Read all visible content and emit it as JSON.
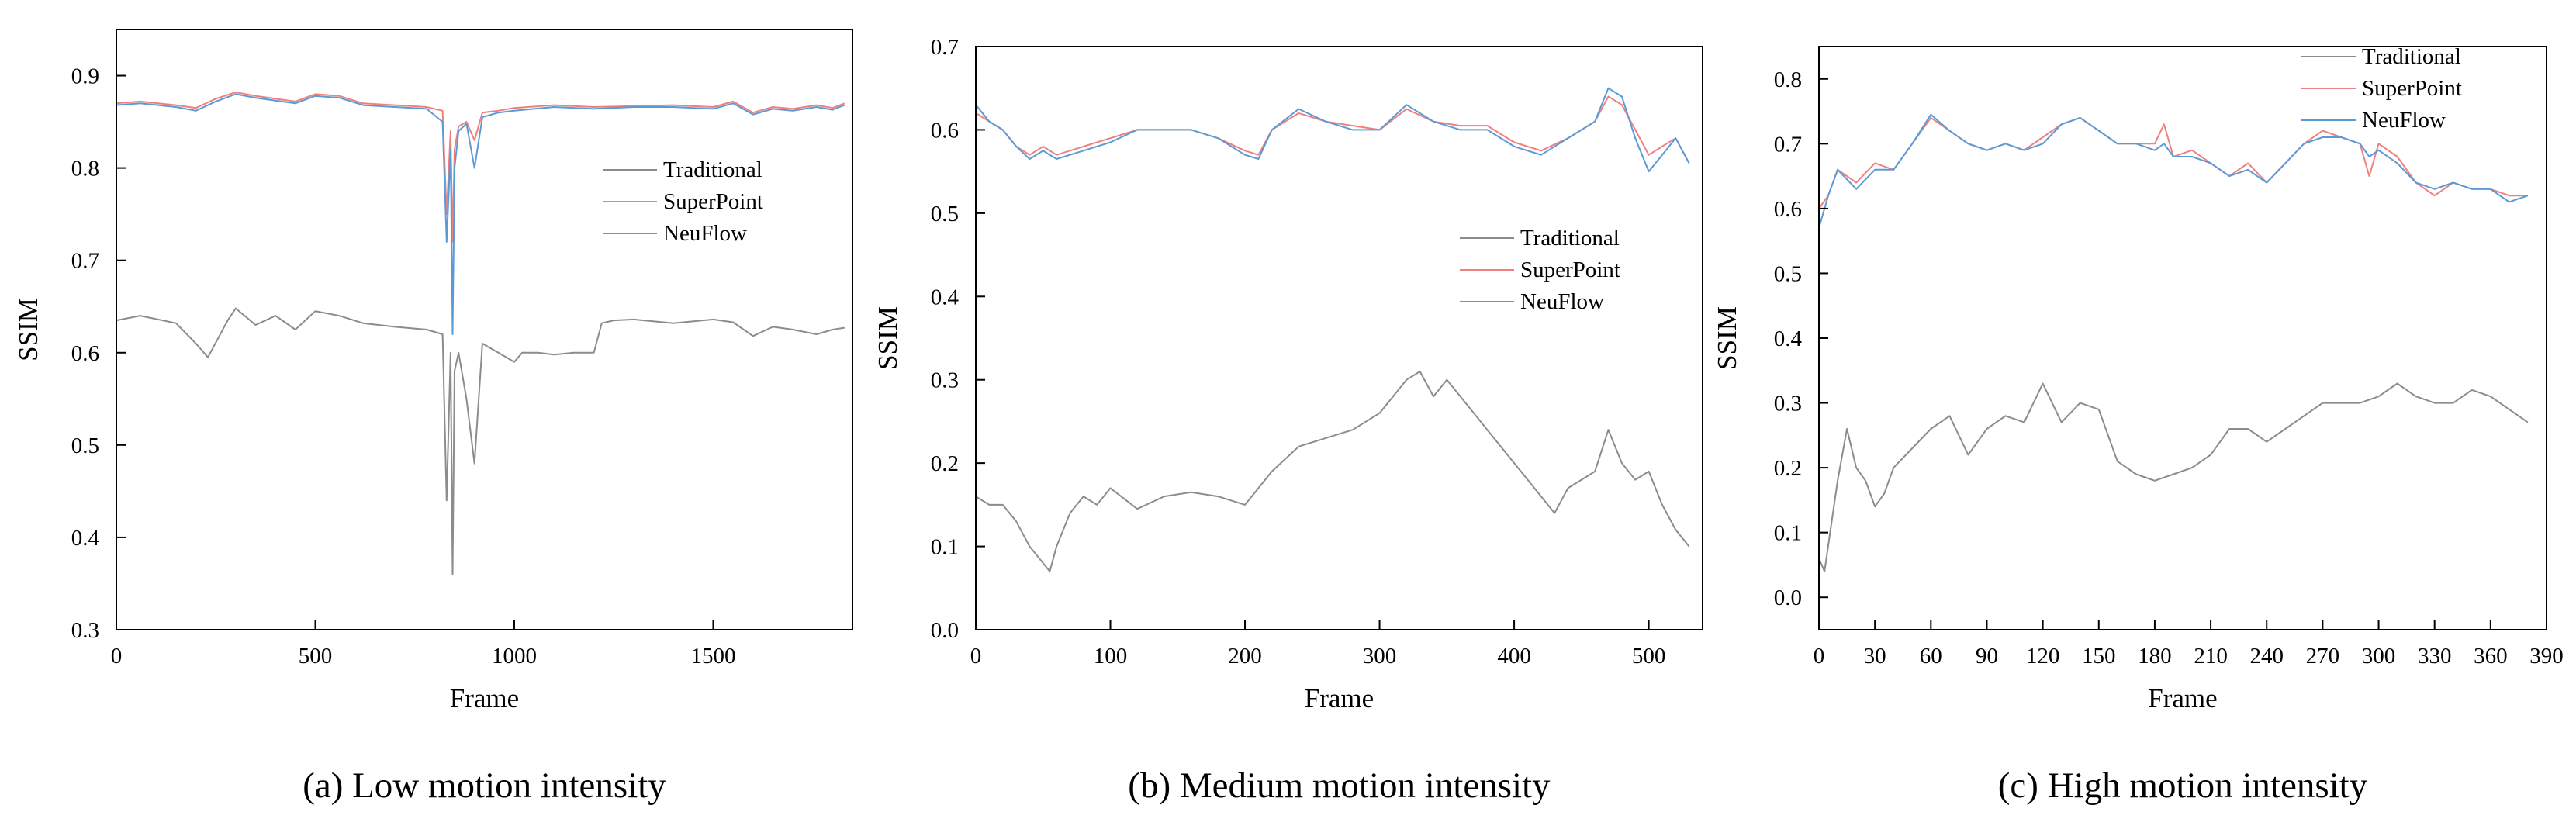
{
  "chart_data": [
    {
      "id": "a",
      "type": "line",
      "caption": "(a) Low motion intensity",
      "xlabel": "Frame",
      "ylabel": "SSIM",
      "xlim": [
        0,
        1850
      ],
      "ylim": [
        0.3,
        0.95
      ],
      "xticks": [
        0,
        500,
        1000,
        1500
      ],
      "xtick_labels": [
        "0",
        "500",
        "1000",
        "1500"
      ],
      "yticks": [
        0.3,
        0.4,
        0.5,
        0.6,
        0.7,
        0.8,
        0.9
      ],
      "ytick_labels": [
        "0.3",
        "0.4",
        "0.5",
        "0.6",
        "0.7",
        "0.8",
        "0.9"
      ],
      "legend_position": "right-middle",
      "series": [
        {
          "name": "Traditional",
          "color": "#8c8c8c",
          "label": "Traditional",
          "x": [
            0,
            60,
            150,
            200,
            230,
            280,
            300,
            350,
            400,
            450,
            500,
            560,
            620,
            700,
            780,
            820,
            830,
            840,
            845,
            850,
            860,
            880,
            900,
            920,
            960,
            1000,
            1020,
            1060,
            1100,
            1150,
            1200,
            1220,
            1250,
            1300,
            1400,
            1500,
            1550,
            1600,
            1650,
            1700,
            1760,
            1800,
            1830
          ],
          "values": [
            0.635,
            0.64,
            0.632,
            0.61,
            0.595,
            0.635,
            0.648,
            0.63,
            0.64,
            0.625,
            0.645,
            0.64,
            0.632,
            0.628,
            0.625,
            0.62,
            0.44,
            0.6,
            0.36,
            0.58,
            0.6,
            0.55,
            0.48,
            0.61,
            0.6,
            0.59,
            0.6,
            0.6,
            0.598,
            0.6,
            0.6,
            0.632,
            0.635,
            0.636,
            0.632,
            0.636,
            0.633,
            0.618,
            0.628,
            0.625,
            0.62,
            0.625,
            0.627
          ]
        },
        {
          "name": "SuperPoint",
          "color": "#f08080",
          "label": "SuperPoint",
          "x": [
            0,
            60,
            150,
            200,
            250,
            300,
            350,
            400,
            450,
            500,
            560,
            620,
            700,
            780,
            820,
            830,
            840,
            845,
            850,
            860,
            880,
            900,
            920,
            960,
            1000,
            1100,
            1200,
            1300,
            1400,
            1500,
            1550,
            1600,
            1650,
            1700,
            1760,
            1800,
            1830
          ],
          "values": [
            0.87,
            0.872,
            0.868,
            0.865,
            0.875,
            0.882,
            0.878,
            0.875,
            0.872,
            0.88,
            0.878,
            0.87,
            0.868,
            0.866,
            0.862,
            0.75,
            0.84,
            0.72,
            0.82,
            0.845,
            0.85,
            0.83,
            0.86,
            0.862,
            0.865,
            0.868,
            0.866,
            0.867,
            0.868,
            0.866,
            0.872,
            0.86,
            0.866,
            0.864,
            0.868,
            0.865,
            0.87
          ]
        },
        {
          "name": "NeuFlow",
          "color": "#5b9bd5",
          "label": "NeuFlow",
          "x": [
            0,
            60,
            150,
            200,
            250,
            300,
            350,
            400,
            450,
            500,
            560,
            620,
            700,
            780,
            820,
            830,
            840,
            845,
            850,
            860,
            880,
            900,
            920,
            960,
            1000,
            1100,
            1200,
            1300,
            1400,
            1500,
            1550,
            1600,
            1650,
            1700,
            1760,
            1800,
            1830
          ],
          "values": [
            0.868,
            0.87,
            0.866,
            0.862,
            0.872,
            0.88,
            0.876,
            0.873,
            0.87,
            0.878,
            0.876,
            0.868,
            0.866,
            0.864,
            0.85,
            0.72,
            0.82,
            0.62,
            0.8,
            0.84,
            0.848,
            0.8,
            0.855,
            0.86,
            0.862,
            0.866,
            0.864,
            0.866,
            0.866,
            0.864,
            0.87,
            0.858,
            0.864,
            0.862,
            0.866,
            0.863,
            0.868
          ]
        }
      ]
    },
    {
      "id": "b",
      "type": "line",
      "caption": "(b) Medium motion intensity",
      "xlabel": "Frame",
      "ylabel": "SSIM",
      "xlim": [
        0,
        540
      ],
      "ylim": [
        0.0,
        0.7
      ],
      "xticks": [
        0,
        100,
        200,
        300,
        400,
        500
      ],
      "xtick_labels": [
        "0",
        "100",
        "200",
        "300",
        "400",
        "500"
      ],
      "yticks": [
        0.0,
        0.1,
        0.2,
        0.3,
        0.4,
        0.5,
        0.6,
        0.7
      ],
      "ytick_labels": [
        "0.0",
        "0.1",
        "0.2",
        "0.3",
        "0.4",
        "0.5",
        "0.6",
        "0.7"
      ],
      "legend_position": "right-middle",
      "series": [
        {
          "name": "Traditional",
          "color": "#8c8c8c",
          "label": "Traditional",
          "x": [
            0,
            10,
            20,
            30,
            40,
            50,
            55,
            60,
            70,
            80,
            90,
            100,
            120,
            140,
            160,
            180,
            200,
            210,
            220,
            240,
            260,
            280,
            300,
            320,
            330,
            340,
            350,
            360,
            380,
            400,
            420,
            430,
            440,
            460,
            470,
            480,
            490,
            500,
            510,
            520,
            530
          ],
          "values": [
            0.16,
            0.15,
            0.15,
            0.13,
            0.1,
            0.08,
            0.07,
            0.1,
            0.14,
            0.16,
            0.15,
            0.17,
            0.145,
            0.16,
            0.165,
            0.16,
            0.15,
            0.17,
            0.19,
            0.22,
            0.23,
            0.24,
            0.26,
            0.3,
            0.31,
            0.28,
            0.3,
            0.28,
            0.24,
            0.2,
            0.16,
            0.14,
            0.17,
            0.19,
            0.24,
            0.2,
            0.18,
            0.19,
            0.15,
            0.12,
            0.1
          ]
        },
        {
          "name": "SuperPoint",
          "color": "#f08080",
          "label": "SuperPoint",
          "x": [
            0,
            10,
            20,
            30,
            40,
            50,
            60,
            80,
            100,
            120,
            140,
            160,
            180,
            200,
            210,
            220,
            240,
            260,
            280,
            300,
            320,
            340,
            360,
            380,
            400,
            420,
            440,
            460,
            470,
            480,
            490,
            500,
            510,
            520,
            530
          ],
          "values": [
            0.62,
            0.61,
            0.6,
            0.58,
            0.57,
            0.58,
            0.57,
            0.58,
            0.59,
            0.6,
            0.6,
            0.6,
            0.59,
            0.575,
            0.57,
            0.6,
            0.62,
            0.61,
            0.605,
            0.6,
            0.625,
            0.61,
            0.605,
            0.605,
            0.585,
            0.575,
            0.59,
            0.61,
            0.64,
            0.63,
            0.6,
            0.57,
            0.58,
            0.59,
            0.56
          ]
        },
        {
          "name": "NeuFlow",
          "color": "#5b9bd5",
          "label": "NeuFlow",
          "x": [
            0,
            10,
            20,
            30,
            40,
            50,
            60,
            80,
            100,
            120,
            140,
            160,
            180,
            200,
            210,
            220,
            240,
            260,
            280,
            300,
            320,
            340,
            360,
            380,
            400,
            420,
            440,
            460,
            470,
            480,
            490,
            500,
            510,
            520,
            530
          ],
          "values": [
            0.63,
            0.61,
            0.6,
            0.58,
            0.565,
            0.575,
            0.565,
            0.575,
            0.585,
            0.6,
            0.6,
            0.6,
            0.59,
            0.57,
            0.565,
            0.6,
            0.625,
            0.61,
            0.6,
            0.6,
            0.63,
            0.61,
            0.6,
            0.6,
            0.58,
            0.57,
            0.59,
            0.61,
            0.65,
            0.64,
            0.59,
            0.55,
            0.57,
            0.59,
            0.56
          ]
        }
      ]
    },
    {
      "id": "c",
      "type": "line",
      "caption": "(c) High motion intensity",
      "xlabel": "Frame",
      "ylabel": "SSIM",
      "xlim": [
        0,
        390
      ],
      "ylim": [
        -0.05,
        0.85
      ],
      "xticks": [
        0,
        30,
        60,
        90,
        120,
        150,
        180,
        210,
        240,
        270,
        300,
        330,
        360,
        390
      ],
      "xtick_labels": [
        "0",
        "30",
        "60",
        "90",
        "120",
        "150",
        "180",
        "210",
        "240",
        "270",
        "300",
        "330",
        "360",
        "390"
      ],
      "yticks": [
        0.0,
        0.1,
        0.2,
        0.3,
        0.4,
        0.5,
        0.6,
        0.7,
        0.8
      ],
      "ytick_labels": [
        "0.0",
        "0.1",
        "0.2",
        "0.3",
        "0.4",
        "0.5",
        "0.6",
        "0.7",
        "0.8"
      ],
      "legend_position": "top-right",
      "series": [
        {
          "name": "Traditional",
          "color": "#8c8c8c",
          "label": "Traditional",
          "x": [
            0,
            3,
            6,
            10,
            15,
            20,
            25,
            30,
            35,
            40,
            50,
            60,
            70,
            80,
            90,
            100,
            110,
            120,
            130,
            140,
            150,
            160,
            170,
            180,
            190,
            200,
            210,
            220,
            230,
            240,
            250,
            260,
            270,
            280,
            290,
            300,
            310,
            320,
            330,
            340,
            350,
            360,
            370,
            380
          ],
          "values": [
            0.06,
            0.04,
            0.1,
            0.18,
            0.26,
            0.2,
            0.18,
            0.14,
            0.16,
            0.2,
            0.23,
            0.26,
            0.28,
            0.22,
            0.26,
            0.28,
            0.27,
            0.33,
            0.27,
            0.3,
            0.29,
            0.21,
            0.19,
            0.18,
            0.19,
            0.2,
            0.22,
            0.26,
            0.26,
            0.24,
            0.26,
            0.28,
            0.3,
            0.3,
            0.3,
            0.31,
            0.33,
            0.31,
            0.3,
            0.3,
            0.32,
            0.31,
            0.29,
            0.27
          ]
        },
        {
          "name": "SuperPoint",
          "color": "#f08080",
          "label": "SuperPoint",
          "x": [
            0,
            5,
            10,
            20,
            30,
            40,
            50,
            60,
            70,
            80,
            90,
            100,
            110,
            120,
            130,
            140,
            150,
            160,
            170,
            180,
            185,
            190,
            200,
            210,
            220,
            230,
            240,
            250,
            260,
            270,
            280,
            290,
            295,
            300,
            310,
            320,
            330,
            340,
            350,
            360,
            370,
            380
          ],
          "values": [
            0.6,
            0.62,
            0.66,
            0.64,
            0.67,
            0.66,
            0.7,
            0.74,
            0.72,
            0.7,
            0.69,
            0.7,
            0.69,
            0.71,
            0.73,
            0.74,
            0.72,
            0.7,
            0.7,
            0.7,
            0.73,
            0.68,
            0.69,
            0.67,
            0.65,
            0.67,
            0.64,
            0.67,
            0.7,
            0.72,
            0.71,
            0.7,
            0.65,
            0.7,
            0.68,
            0.64,
            0.62,
            0.64,
            0.63,
            0.63,
            0.62,
            0.62
          ]
        },
        {
          "name": "NeuFlow",
          "color": "#5b9bd5",
          "label": "NeuFlow",
          "x": [
            0,
            5,
            10,
            20,
            30,
            40,
            50,
            60,
            70,
            80,
            90,
            100,
            110,
            120,
            130,
            140,
            150,
            160,
            170,
            180,
            185,
            190,
            200,
            210,
            220,
            230,
            240,
            250,
            260,
            270,
            280,
            290,
            295,
            300,
            310,
            320,
            330,
            340,
            350,
            360,
            370,
            380
          ],
          "values": [
            0.57,
            0.62,
            0.66,
            0.63,
            0.66,
            0.66,
            0.7,
            0.745,
            0.72,
            0.7,
            0.69,
            0.7,
            0.69,
            0.7,
            0.73,
            0.74,
            0.72,
            0.7,
            0.7,
            0.69,
            0.7,
            0.68,
            0.68,
            0.67,
            0.65,
            0.66,
            0.64,
            0.67,
            0.7,
            0.71,
            0.71,
            0.7,
            0.68,
            0.69,
            0.67,
            0.64,
            0.63,
            0.64,
            0.63,
            0.63,
            0.61,
            0.62
          ]
        }
      ]
    }
  ]
}
